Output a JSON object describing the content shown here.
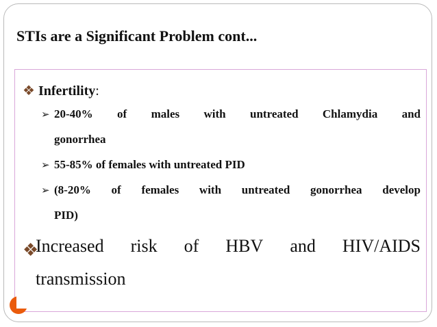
{
  "slide": {
    "title": "STIs are a Significant Problem cont...",
    "bullet1": {
      "label": "Infertility",
      "suffix": ":",
      "subitems": [
        {
          "words": [
            "20-40%",
            "of",
            "males",
            "with",
            "untreated",
            "Chlamydia",
            "and"
          ],
          "continuation": "gonorrhea"
        },
        {
          "text": "55-85% of females with untreated PID"
        },
        {
          "words": [
            "(8-20%",
            "of",
            "females",
            "with",
            "untreated",
            "gonorrhea",
            "develop"
          ],
          "continuation": "PID)"
        }
      ]
    },
    "bullet2": {
      "words": [
        "Increased",
        "risk",
        "of",
        "HBV",
        "and",
        "HIV/AIDS"
      ],
      "continuation": "transmission"
    }
  },
  "colors": {
    "accent_orange": "#ea5b0c",
    "bullet_diamond": "#7a4a2a",
    "content_border": "#d9a6d9",
    "frame_border": "#b9b9b9"
  },
  "icons": {
    "bullet": "diamond-bullet-icon",
    "sub_bullet": "arrow-bullet-icon"
  }
}
